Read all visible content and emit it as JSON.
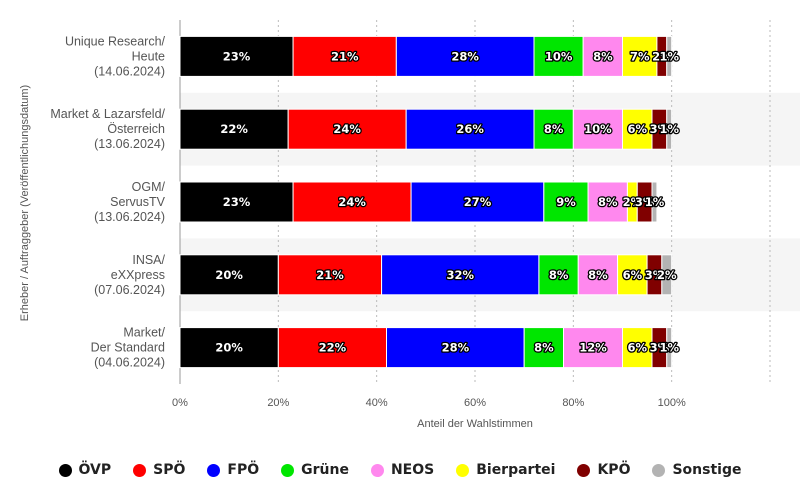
{
  "chart_data": {
    "type": "bar",
    "orientation": "horizontal",
    "stacked": true,
    "ylabel": "Erheber / Auftraggeber (Veröffentlichungsdatum)",
    "xlabel": "Anteil der Wahlstimmen",
    "xlim": [
      0,
      120
    ],
    "x_ticks": [
      "0%",
      "20%",
      "40%",
      "60%",
      "80%",
      "100%"
    ],
    "categories": [
      [
        "Unique Research/",
        "Heute",
        "(14.06.2024)"
      ],
      [
        "Market & Lazarsfeld/",
        "Österreich",
        "(13.06.2024)"
      ],
      [
        "OGM/",
        "ServusTV",
        "(13.06.2024)"
      ],
      [
        "INSA/",
        "eXXpress",
        "(07.06.2024)"
      ],
      [
        "Market/",
        "Der Standard",
        "(04.06.2024)"
      ]
    ],
    "series": [
      {
        "name": "ÖVP",
        "color": "#000000",
        "values": [
          23,
          22,
          23,
          20,
          20
        ],
        "labels": [
          "23%",
          "22%",
          "23%",
          "20%",
          "20%"
        ]
      },
      {
        "name": "SPÖ",
        "color": "#ff0000",
        "values": [
          21,
          24,
          24,
          21,
          22
        ],
        "labels": [
          "21%",
          "24%",
          "24%",
          "21%",
          "22%"
        ]
      },
      {
        "name": "FPÖ",
        "color": "#0000ff",
        "values": [
          28,
          26,
          27,
          32,
          28
        ],
        "labels": [
          "28%",
          "26%",
          "27%",
          "32%",
          "28%"
        ]
      },
      {
        "name": "Grüne",
        "color": "#00e600",
        "values": [
          10,
          8,
          9,
          8,
          8
        ],
        "labels": [
          "10%",
          "8%",
          "9%",
          "8%",
          "8%"
        ]
      },
      {
        "name": "NEOS",
        "color": "#ff88ee",
        "values": [
          8,
          10,
          8,
          8,
          12
        ],
        "labels": [
          "8%",
          "10%",
          "8%",
          "8%",
          "12%"
        ]
      },
      {
        "name": "Bierpartei",
        "color": "#ffff00",
        "values": [
          7,
          6,
          2,
          6,
          6
        ],
        "labels": [
          "7%",
          "6%",
          "2%",
          "6%",
          "6%"
        ]
      },
      {
        "name": "KPÖ",
        "color": "#800000",
        "values": [
          2,
          3,
          3,
          3,
          3
        ],
        "labels": [
          "2%",
          "3%",
          "3%",
          "3%",
          "3%"
        ]
      },
      {
        "name": "Sonstige",
        "color": "#b3b3b3",
        "values": [
          1,
          1,
          1,
          2,
          1
        ],
        "labels": [
          "1%",
          "1%",
          "1%",
          "2%",
          "1%"
        ]
      }
    ],
    "grid": true,
    "legend_position": "bottom"
  }
}
